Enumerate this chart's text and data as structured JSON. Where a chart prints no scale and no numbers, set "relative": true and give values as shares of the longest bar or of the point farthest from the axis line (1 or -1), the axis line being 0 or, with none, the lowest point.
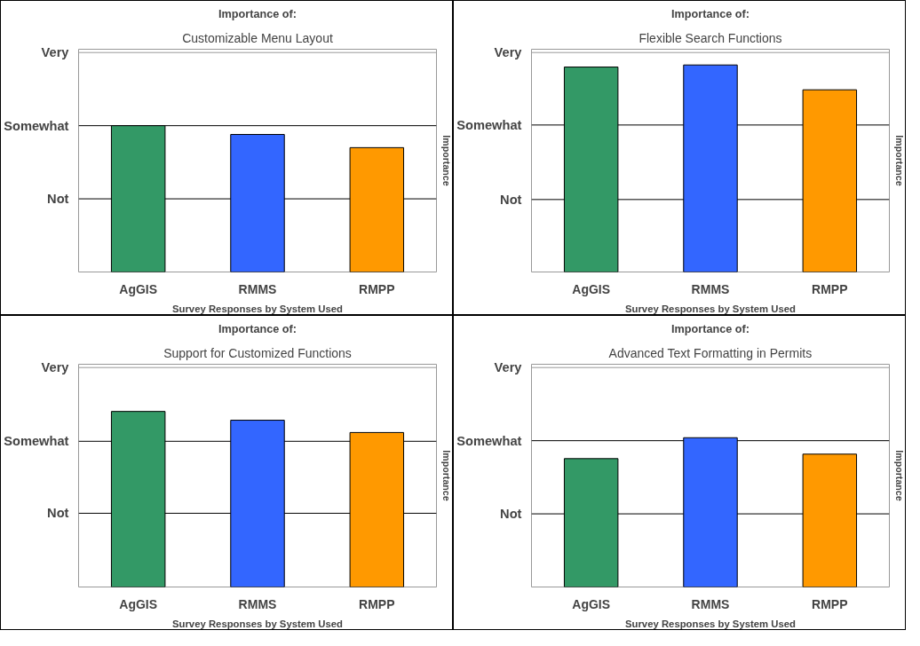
{
  "chart_data": [
    {
      "type": "bar",
      "relative": true,
      "title": "Importance of:",
      "subtitle": "Customizable Menu Layout",
      "xlabel": "Survey Responses by System Used",
      "ylabel": "Importance",
      "categories": [
        "AgGIS",
        "RMMS",
        "RMPP"
      ],
      "values": [
        1.0,
        0.94,
        0.85
      ],
      "colors": [
        "#339966",
        "#3366ff",
        "#ff9900"
      ],
      "ref_lines": [
        {
          "axis": "y",
          "value": 0.5,
          "label": "Not",
          "color": "#000000"
        },
        {
          "axis": "y",
          "value": 1.0,
          "label": "Somewhat",
          "color": "#000000"
        },
        {
          "axis": "y",
          "value": 1.5,
          "label": "Very",
          "color": "#999999"
        }
      ]
    },
    {
      "type": "bar",
      "relative": true,
      "title": "Importance of:",
      "subtitle": "Flexible Search Functions",
      "xlabel": "Survey Responses by System Used",
      "ylabel": "Importance",
      "categories": [
        "AgGIS",
        "RMMS",
        "RMPP"
      ],
      "values": [
        0.99,
        1.0,
        0.88
      ],
      "colors": [
        "#339966",
        "#3366ff",
        "#ff9900"
      ],
      "ref_lines": [
        {
          "axis": "y",
          "value": 0.35,
          "label": "Not",
          "color": "#000000"
        },
        {
          "axis": "y",
          "value": 0.71,
          "label": "Somewhat",
          "color": "#000000"
        },
        {
          "axis": "y",
          "value": 1.06,
          "label": "Very",
          "color": "#999999"
        }
      ]
    },
    {
      "type": "bar",
      "relative": true,
      "title": "Importance of:",
      "subtitle": "Support for Customized Functions",
      "xlabel": "Survey Responses by System Used",
      "ylabel": "Importance",
      "categories": [
        "AgGIS",
        "RMMS",
        "RMPP"
      ],
      "values": [
        1.0,
        0.95,
        0.88
      ],
      "colors": [
        "#339966",
        "#3366ff",
        "#ff9900"
      ],
      "ref_lines": [
        {
          "axis": "y",
          "value": 0.42,
          "label": "Not",
          "color": "#000000"
        },
        {
          "axis": "y",
          "value": 0.83,
          "label": "Somewhat",
          "color": "#000000"
        },
        {
          "axis": "y",
          "value": 1.25,
          "label": "Very",
          "color": "#999999"
        }
      ]
    },
    {
      "type": "bar",
      "relative": true,
      "title": "Importance of:",
      "subtitle": "Advanced Text Formatting in Permits",
      "xlabel": "Survey Responses by System Used",
      "ylabel": "Importance",
      "categories": [
        "AgGIS",
        "RMMS",
        "RMPP"
      ],
      "values": [
        0.86,
        1.0,
        0.89
      ],
      "colors": [
        "#339966",
        "#3366ff",
        "#ff9900"
      ],
      "ref_lines": [
        {
          "axis": "y",
          "value": 0.49,
          "label": "Not",
          "color": "#000000"
        },
        {
          "axis": "y",
          "value": 0.98,
          "label": "Somewhat",
          "color": "#000000"
        },
        {
          "axis": "y",
          "value": 1.47,
          "label": "Very",
          "color": "#999999"
        }
      ]
    }
  ]
}
